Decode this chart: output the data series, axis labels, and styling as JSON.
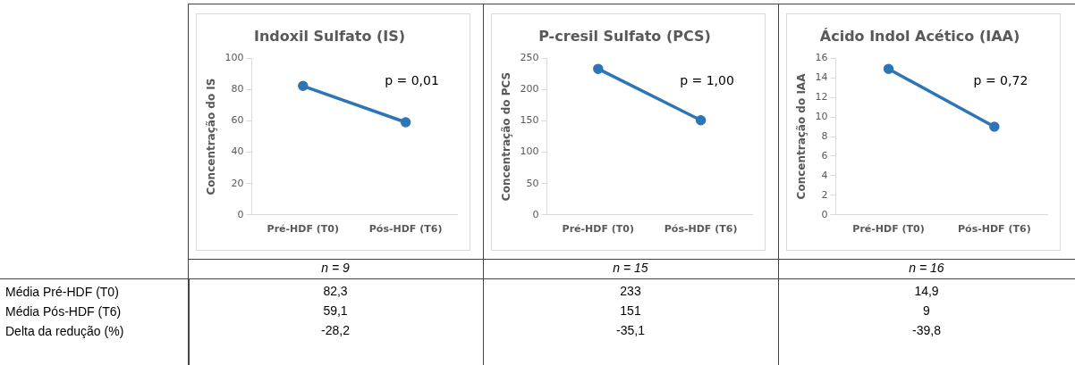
{
  "chart_data": [
    {
      "type": "line",
      "title": "Indoxil Sulfato (IS)",
      "ylabel": "Concentração do IS",
      "categories": [
        "Pré-HDF (T0)",
        "Pós-HDF (T6)"
      ],
      "series": [
        {
          "color": "#2e75b6",
          "values": [
            82.3,
            59.1
          ]
        }
      ],
      "ylim": [
        0,
        100
      ],
      "yticks": [
        0,
        20,
        40,
        60,
        80,
        100
      ],
      "marker": "circle",
      "grid": false,
      "legend": false,
      "annotations": [
        "p = 0,01",
        "n = 9",
        "82,3",
        "59,1",
        "-28,2"
      ]
    },
    {
      "type": "line",
      "title": "P-cresil Sulfato (PCS)",
      "ylabel": "Concentração do PCS",
      "categories": [
        "Pré-HDF (T0)",
        "Pós-HDF (T6)"
      ],
      "series": [
        {
          "color": "#2e75b6",
          "values": [
            233,
            151
          ]
        }
      ],
      "ylim": [
        0,
        250
      ],
      "yticks": [
        0,
        50,
        100,
        150,
        200,
        250
      ],
      "marker": "circle",
      "grid": false,
      "legend": false,
      "annotations": [
        "p = 1,00",
        "n = 15",
        "233",
        "151",
        "-35,1"
      ]
    },
    {
      "type": "line",
      "title": "Ácido Indol Acético (IAA)",
      "ylabel": "Concentração do IAA",
      "categories": [
        "Pré-HDF (T0)",
        "Pós-HDF (T6)"
      ],
      "series": [
        {
          "color": "#2e75b6",
          "values": [
            14.9,
            9
          ]
        }
      ],
      "ylim": [
        0,
        16
      ],
      "yticks": [
        0,
        2,
        4,
        6,
        8,
        10,
        12,
        14,
        16
      ],
      "marker": "circle",
      "grid": false,
      "legend": false,
      "annotations": [
        "p = 0,72",
        "n = 16",
        "14,9",
        "9",
        "-39,8"
      ]
    },
    {
      "type": "other",
      "annotations": [
        "Média Pré-HDF (T0)",
        "Média Pós-HDF (T6)",
        "Delta da redução (%)"
      ]
    }
  ]
}
